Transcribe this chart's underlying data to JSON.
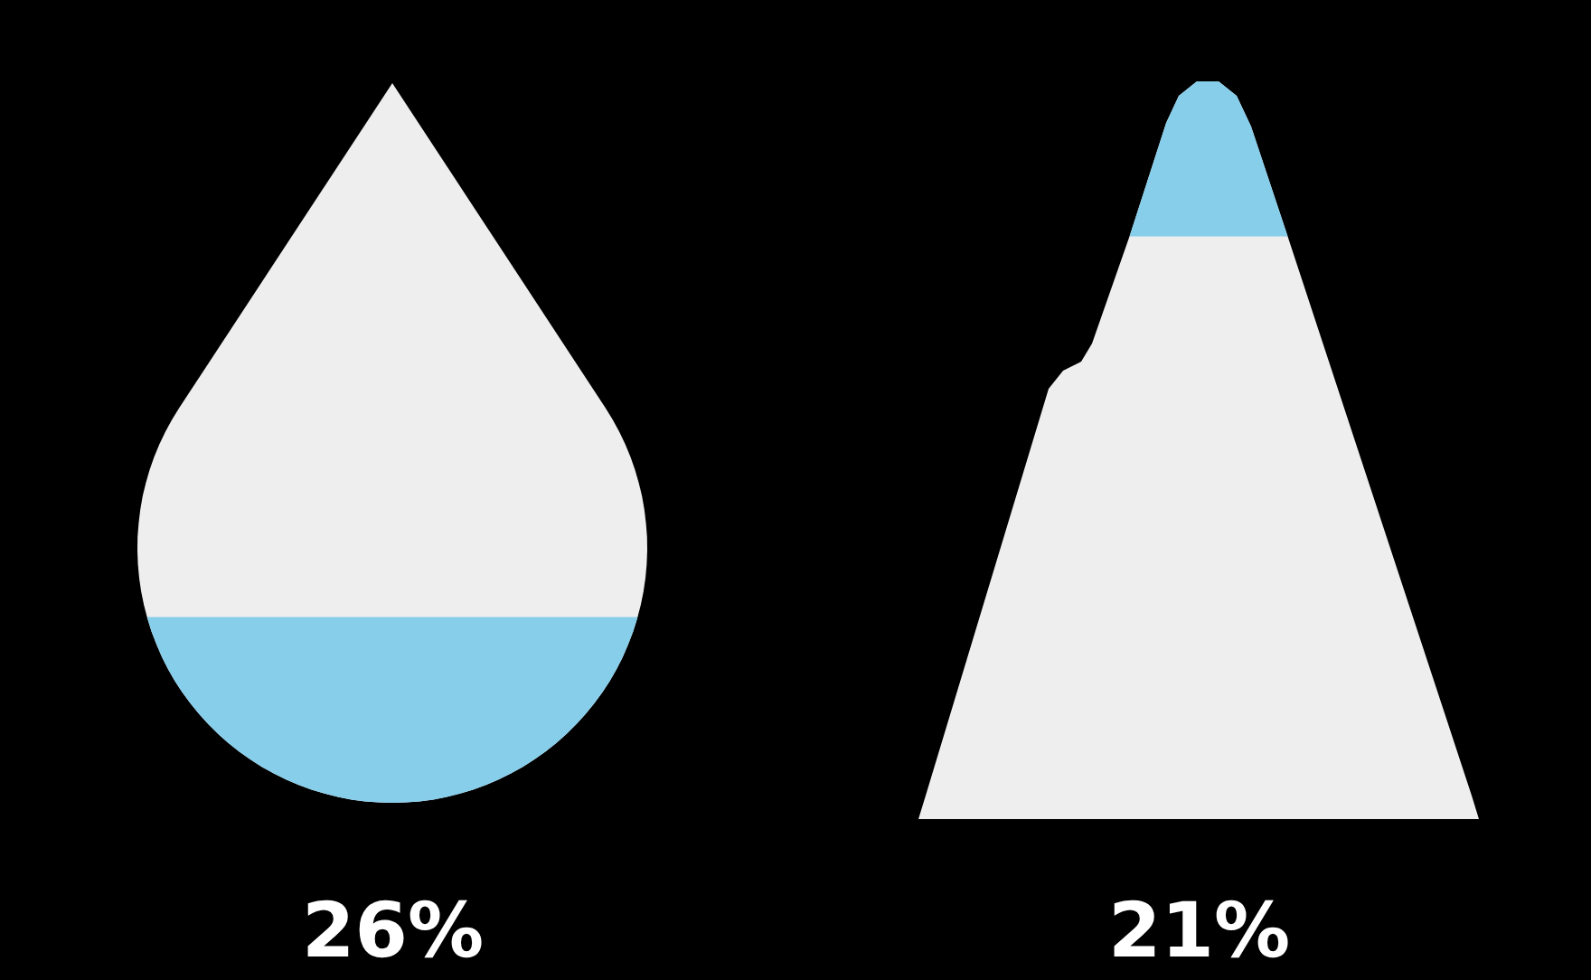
{
  "chart_data": {
    "type": "other",
    "categories": [
      null,
      null
    ],
    "values": [
      26,
      21
    ],
    "value_labels": [
      "26%",
      "21%"
    ],
    "colors": [
      "#87ceeb",
      "#87ceeb"
    ]
  }
}
